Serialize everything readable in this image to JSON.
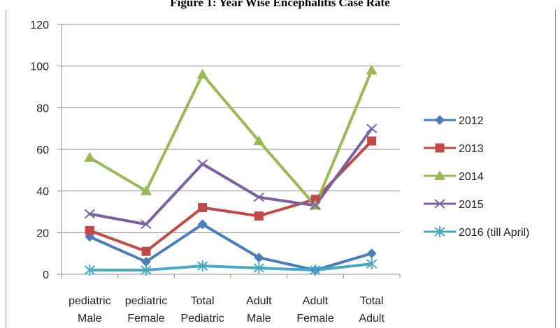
{
  "figure_title": "Figure 1: Year Wise Encephalitis Case Rate",
  "chart_data": {
    "type": "line",
    "title": "Figure 1: Year Wise Encephalitis Case Rate",
    "categories": [
      [
        "pediatric",
        "Male"
      ],
      [
        "pediatric",
        "Female"
      ],
      [
        "Total",
        "Pediatric"
      ],
      [
        "Adult",
        "Male"
      ],
      [
        "Adult",
        "Female"
      ],
      [
        "Total",
        "Adult"
      ]
    ],
    "ylim": [
      0,
      120
    ],
    "yticks": [
      0,
      20,
      40,
      60,
      80,
      100,
      120
    ],
    "grid": true,
    "legend_position": "right",
    "series": [
      {
        "name": "2012",
        "color": "#4a7ebb",
        "marker": "diamond",
        "values": [
          18,
          6,
          24,
          8,
          2,
          10
        ]
      },
      {
        "name": "2013",
        "color": "#be4b48",
        "marker": "square",
        "values": [
          21,
          11,
          32,
          28,
          36,
          64
        ]
      },
      {
        "name": "2014",
        "color": "#98b954",
        "marker": "triangle",
        "values": [
          56,
          40,
          96,
          64,
          33,
          98
        ]
      },
      {
        "name": "2015",
        "color": "#7d60a0",
        "marker": "x",
        "values": [
          29,
          24,
          53,
          37,
          33,
          70
        ]
      },
      {
        "name": "2016 (till April)",
        "color": "#46aac5",
        "marker": "asterisk",
        "values": [
          2,
          2,
          4,
          3,
          2,
          5
        ]
      }
    ]
  }
}
